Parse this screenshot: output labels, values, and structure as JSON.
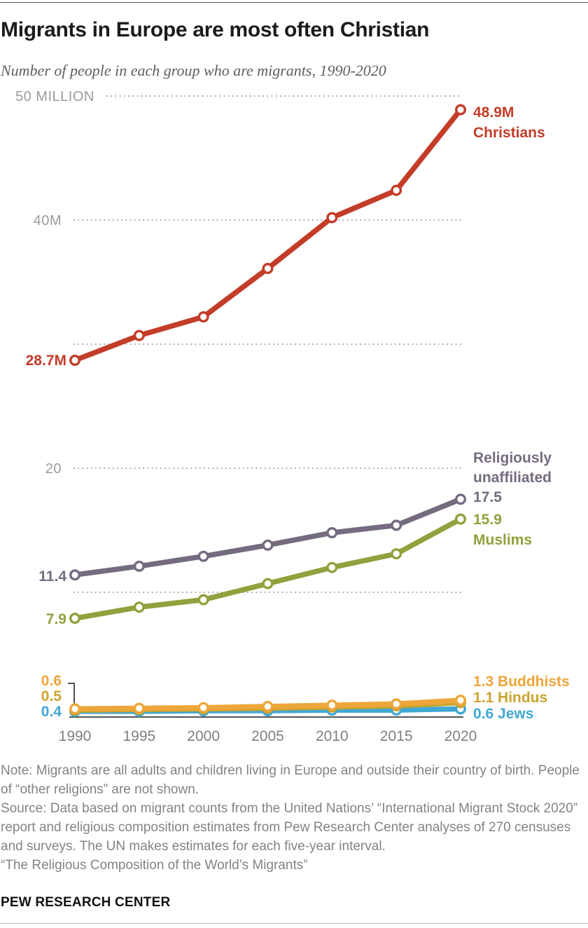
{
  "chart_data": {
    "type": "line",
    "title": "Migrants in Europe are most often Christian",
    "subtitle": "Number of people in each group who are migrants, 1990-2020",
    "unit": "millions of people",
    "x": [
      "1990",
      "1995",
      "2000",
      "2005",
      "2010",
      "2015",
      "2020"
    ],
    "ylim": [
      0,
      52
    ],
    "grid": "horizontal dotted",
    "legend_position": "line-end labels",
    "gridlines": [
      {
        "value": 50,
        "label": "50 MILLION"
      },
      {
        "value": 40,
        "label": "40M"
      },
      {
        "value": 30,
        "label": ""
      },
      {
        "value": 20,
        "label": "20"
      },
      {
        "value": 10,
        "label": ""
      }
    ],
    "series": [
      {
        "name": "Christians",
        "color": "#c33c28",
        "values": [
          28.7,
          30.7,
          32.2,
          36.1,
          40.2,
          42.4,
          48.9
        ],
        "start_label": "28.7M",
        "end_label_lines": [
          "48.9M",
          "Christians"
        ]
      },
      {
        "name": "Religiously unaffiliated",
        "color": "#756b80",
        "values": [
          11.4,
          12.1,
          12.9,
          13.8,
          14.8,
          15.4,
          17.5
        ],
        "start_label": "11.4",
        "end_label_lines": [
          "Religiously",
          "unaffiliated",
          "17.5"
        ]
      },
      {
        "name": "Muslims",
        "color": "#92a03d",
        "values": [
          7.9,
          8.8,
          9.4,
          10.7,
          12.0,
          13.1,
          15.9
        ],
        "start_label": "7.9",
        "end_label_lines": [
          "15.9",
          "Muslims"
        ]
      },
      {
        "name": "Jews",
        "color": "#41a8d3",
        "values": [
          0.4,
          0.4,
          0.45,
          0.45,
          0.5,
          0.5,
          0.6
        ],
        "start_label": "0.4",
        "end_label_lines": [
          "0.6 Jews"
        ]
      },
      {
        "name": "Hindus",
        "color": "#cba32e",
        "values": [
          0.5,
          0.55,
          0.6,
          0.65,
          0.75,
          0.85,
          1.1
        ],
        "start_label": "0.5",
        "end_label_lines": [
          "1.1 Hindus"
        ]
      },
      {
        "name": "Buddhists",
        "color": "#eda63a",
        "values": [
          0.6,
          0.65,
          0.7,
          0.8,
          0.9,
          1.0,
          1.3
        ],
        "start_label": "0.6",
        "end_label_lines": [
          "1.3 Buddhists"
        ]
      }
    ]
  },
  "footer": {
    "notes": [
      "Note: Migrants are all adults and children living in Europe and outside their country of birth. People of “other religions” are not shown.",
      "Source: Data based on migrant counts from the United Nations’ “International Migrant Stock 2020” report and religious composition estimates from Pew Research Center analyses of 270 censuses and surveys. The UN makes estimates for each five-year interval.",
      "“The Religious Composition of the World’s Migrants”"
    ],
    "brand": "PEW RESEARCH CENTER"
  }
}
